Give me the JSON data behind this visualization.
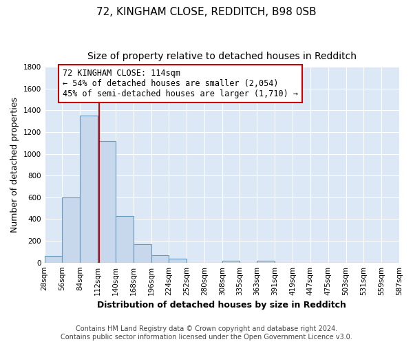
{
  "title_line1": "72, KINGHAM CLOSE, REDDITCH, B98 0SB",
  "title_line2": "Size of property relative to detached houses in Redditch",
  "xlabel": "Distribution of detached houses by size in Redditch",
  "ylabel": "Number of detached properties",
  "bin_edges": [
    28,
    56,
    84,
    112,
    140,
    168,
    196,
    224,
    252,
    280,
    308,
    335,
    363,
    391,
    419,
    447,
    475,
    503,
    531,
    559,
    587
  ],
  "bin_labels": [
    "28sqm",
    "56sqm",
    "84sqm",
    "112sqm",
    "140sqm",
    "168sqm",
    "196sqm",
    "224sqm",
    "252sqm",
    "280sqm",
    "308sqm",
    "335sqm",
    "363sqm",
    "391sqm",
    "419sqm",
    "447sqm",
    "475sqm",
    "503sqm",
    "531sqm",
    "559sqm",
    "587sqm"
  ],
  "counts": [
    60,
    600,
    1350,
    1120,
    430,
    170,
    65,
    35,
    0,
    0,
    20,
    0,
    20,
    0,
    0,
    0,
    0,
    0,
    0,
    0
  ],
  "bar_color": "#c8d8ec",
  "bar_edge_color": "#6699bb",
  "property_line_x": 114,
  "property_line_color": "#cc0000",
  "annotation_line1": "72 KINGHAM CLOSE: 114sqm",
  "annotation_line2": "← 54% of detached houses are smaller (2,054)",
  "annotation_line3": "45% of semi-detached houses are larger (1,710) →",
  "annotation_box_color": "#ffffff",
  "annotation_box_edge_color": "#cc0000",
  "ylim": [
    0,
    1800
  ],
  "yticks": [
    0,
    200,
    400,
    600,
    800,
    1000,
    1200,
    1400,
    1600,
    1800
  ],
  "footer_line1": "Contains HM Land Registry data © Crown copyright and database right 2024.",
  "footer_line2": "Contains public sector information licensed under the Open Government Licence v3.0.",
  "fig_background_color": "#ffffff",
  "plot_background_color": "#dce8f5",
  "grid_color": "#ffffff",
  "title_fontsize": 11,
  "subtitle_fontsize": 10,
  "axis_label_fontsize": 9,
  "tick_fontsize": 7.5,
  "annotation_fontsize": 8.5,
  "footer_fontsize": 7
}
